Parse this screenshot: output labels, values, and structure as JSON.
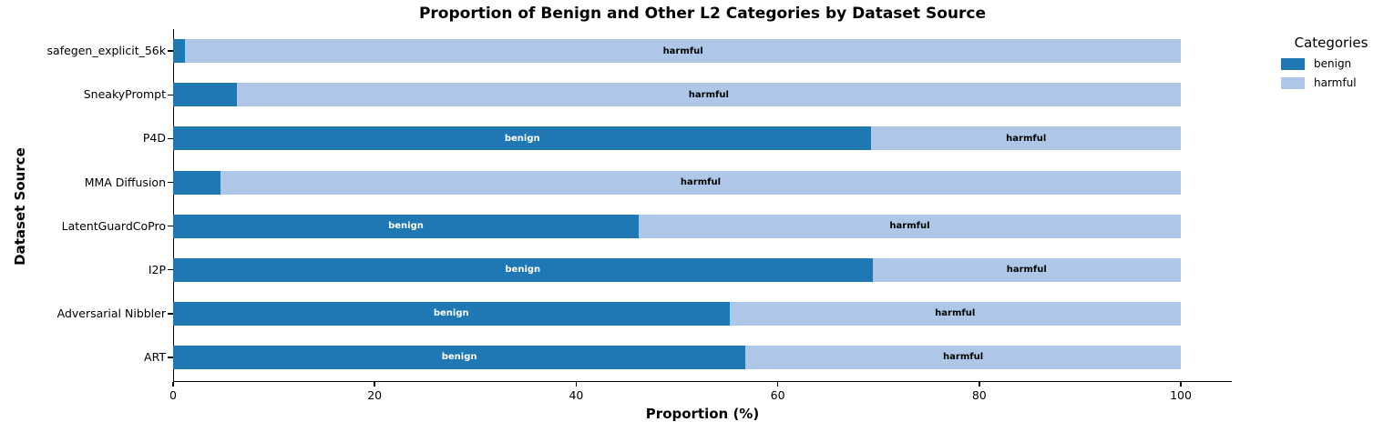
{
  "chart_data": {
    "type": "bar",
    "orientation": "horizontal",
    "stacked": true,
    "title": "Proportion of Benign and Other L2 Categories by Dataset Source",
    "xlabel": "Proportion (%)",
    "ylabel": "Dataset Source",
    "xlim": [
      0,
      105
    ],
    "x_ticks": [
      0,
      20,
      40,
      60,
      80,
      100
    ],
    "grid": false,
    "categories": [
      "safegen_explicit_56k",
      "SneakyPrompt",
      "P4D",
      "MMA Diffusion",
      "LatentGuardCoPro",
      "I2P",
      "Adversarial Nibbler",
      "ART"
    ],
    "series": [
      {
        "name": "benign",
        "color": "#1f77b4",
        "label_text_color": "#ffffff",
        "values": [
          1.2,
          6.3,
          69.3,
          4.7,
          46.2,
          69.4,
          55.2,
          56.8
        ]
      },
      {
        "name": "harmful",
        "color": "#aec7e8",
        "label_text_color": "#000000",
        "values": [
          98.8,
          93.7,
          30.7,
          95.3,
          53.8,
          30.6,
          44.8,
          43.2
        ]
      }
    ],
    "segment_label_threshold_pct": 10,
    "legend": {
      "title": "Categories",
      "entries": [
        "benign",
        "harmful"
      ],
      "position": "upper-right-outside"
    }
  }
}
